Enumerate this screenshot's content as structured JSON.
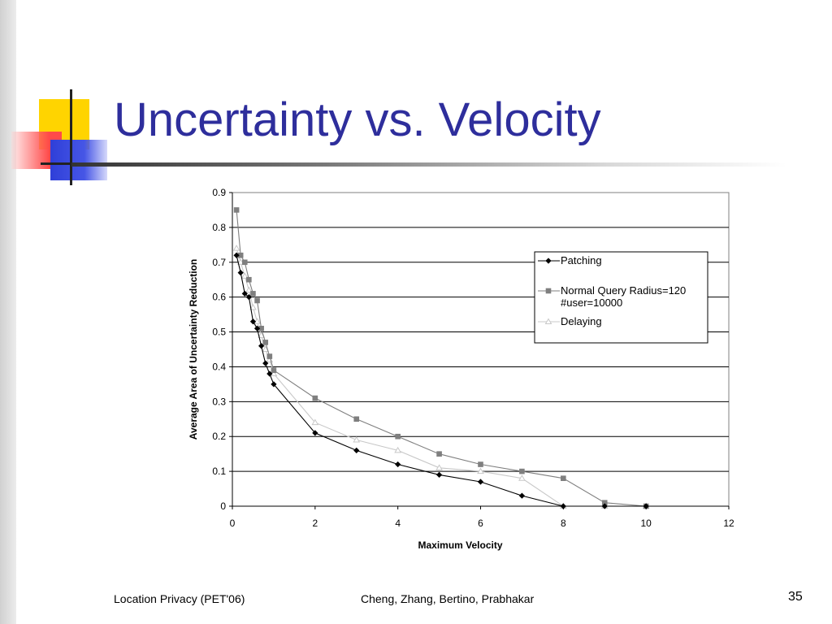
{
  "slide": {
    "title": "Uncertainty vs. Velocity",
    "footer_left": "Location Privacy (PET'06)",
    "footer_center": "Cheng, Zhang, Bertino, Prabhakar",
    "page_number": "35"
  },
  "colors": {
    "title": "#2e2e9c",
    "accent_yellow": "#ffd400",
    "accent_red": "#ff4a4a",
    "accent_blue": "#2f3fd8"
  },
  "chart_data": {
    "type": "line",
    "xlabel": "Maximum Velocity",
    "ylabel": "Average Area of Uncertainty Reduction",
    "xlim": [
      0,
      12
    ],
    "ylim": [
      0,
      0.9
    ],
    "xticks": [
      0,
      2,
      4,
      6,
      8,
      10,
      12
    ],
    "yticks": [
      0,
      0.1,
      0.2,
      0.3,
      0.4,
      0.5,
      0.6,
      0.7,
      0.8,
      0.9
    ],
    "grid": "horizontal",
    "legend_position": "top-right",
    "series": [
      {
        "name": "Patching",
        "marker": "diamond",
        "color": "#000000",
        "x": [
          0.1,
          0.2,
          0.3,
          0.4,
          0.5,
          0.6,
          0.7,
          0.8,
          0.9,
          1,
          2,
          3,
          4,
          5,
          6,
          7,
          8,
          9,
          10
        ],
        "y": [
          0.72,
          0.67,
          0.61,
          0.6,
          0.53,
          0.51,
          0.46,
          0.41,
          0.38,
          0.35,
          0.21,
          0.16,
          0.12,
          0.09,
          0.07,
          0.03,
          0.0,
          0.0,
          0.0
        ]
      },
      {
        "name": "Normal Query Radius=120 #user=10000",
        "marker": "square",
        "color": "#7f7f7f",
        "x": [
          0.1,
          0.2,
          0.3,
          0.4,
          0.5,
          0.6,
          0.7,
          0.8,
          0.9,
          1,
          2,
          3,
          4,
          5,
          6,
          7,
          8,
          9,
          10
        ],
        "y": [
          0.85,
          0.72,
          0.7,
          0.65,
          0.61,
          0.59,
          0.51,
          0.47,
          0.43,
          0.39,
          0.31,
          0.25,
          0.2,
          0.15,
          0.12,
          0.1,
          0.08,
          0.01,
          0.0
        ]
      },
      {
        "name": "Delaying",
        "marker": "triangle",
        "color": "#c8c8c8",
        "x": [
          0.1,
          0.2,
          0.3,
          0.4,
          0.5,
          0.6,
          0.7,
          0.8,
          0.9,
          1,
          2,
          3,
          4,
          5,
          6,
          7,
          8,
          9,
          10
        ],
        "y": [
          0.74,
          0.7,
          0.66,
          0.62,
          0.57,
          0.53,
          0.49,
          0.45,
          0.42,
          0.38,
          0.24,
          0.19,
          0.16,
          0.11,
          0.1,
          0.08,
          0.0,
          0.0,
          0.0
        ]
      }
    ]
  }
}
